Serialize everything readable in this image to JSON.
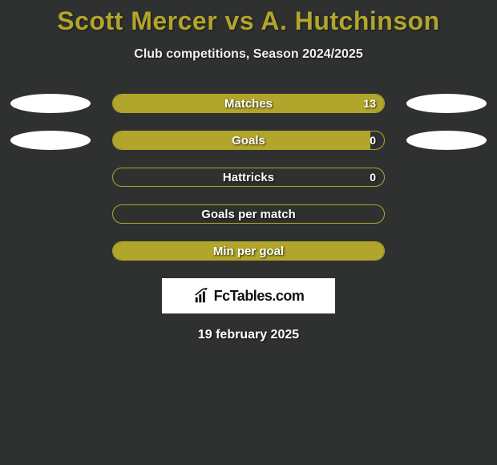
{
  "title": "Scott Mercer vs A. Hutchinson",
  "subtitle": "Club competitions, Season 2024/2025",
  "date": "19 february 2025",
  "logo_text": "FcTables.com",
  "colors": {
    "background": "#2f3131",
    "title_color": "#b2a52b",
    "bar_border": "#b2a52b",
    "bar_fill": "#b2a52b",
    "ellipse": "#ffffff",
    "text": "#ffffff"
  },
  "title_fontsize": 32,
  "subtitle_fontsize": 16,
  "bar_label_fontsize": 15,
  "date_fontsize": 16,
  "rows": [
    {
      "label": "Matches",
      "value": "13",
      "fill_pct": 100,
      "show_value": true,
      "left_ellipse": true,
      "right_ellipse": true
    },
    {
      "label": "Goals",
      "value": "0",
      "fill_pct": 95,
      "show_value": true,
      "left_ellipse": true,
      "right_ellipse": true
    },
    {
      "label": "Hattricks",
      "value": "0",
      "fill_pct": 0,
      "show_value": true,
      "left_ellipse": false,
      "right_ellipse": false
    },
    {
      "label": "Goals per match",
      "value": "",
      "fill_pct": 0,
      "show_value": false,
      "left_ellipse": false,
      "right_ellipse": false
    },
    {
      "label": "Min per goal",
      "value": "",
      "fill_pct": 100,
      "show_value": false,
      "left_ellipse": false,
      "right_ellipse": false
    }
  ]
}
